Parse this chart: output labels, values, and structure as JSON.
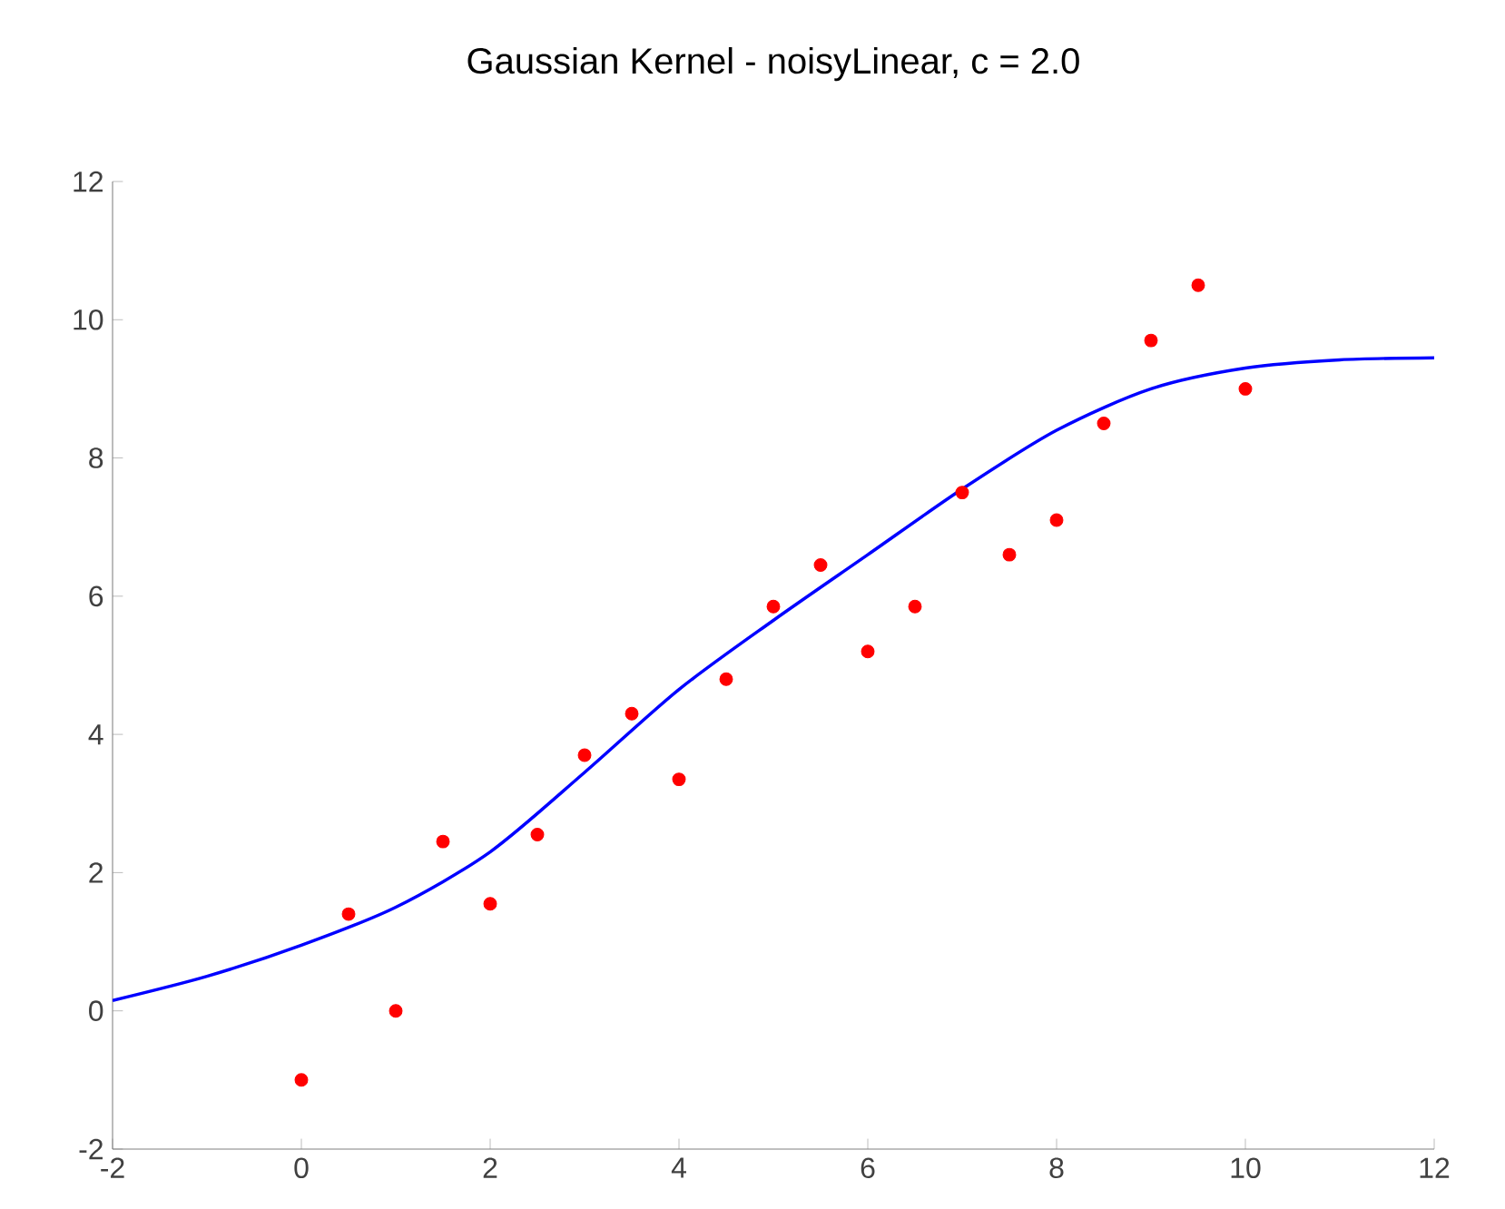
{
  "chart_data": {
    "type": "scatter",
    "title": "Gaussian Kernel - noisyLinear,  c = 2.0",
    "xlim": [
      -2,
      12
    ],
    "ylim": [
      -2,
      12
    ],
    "xticks": [
      -2,
      0,
      2,
      4,
      6,
      8,
      10,
      12
    ],
    "yticks": [
      -2,
      0,
      2,
      4,
      6,
      8,
      10,
      12
    ],
    "series": [
      {
        "color": "#ff0000",
        "marker": "circle",
        "x": [
          0,
          0.5,
          1,
          1.5,
          2,
          2.5,
          3,
          3.5,
          4,
          4.5,
          5,
          5.5,
          6,
          6.5,
          7,
          7.5,
          8,
          8.5,
          9,
          9.5,
          10
        ],
        "values": [
          -1.0,
          1.4,
          0.0,
          2.45,
          1.55,
          2.55,
          3.7,
          4.3,
          3.35,
          4.8,
          5.85,
          6.45,
          5.2,
          5.85,
          7.5,
          6.6,
          7.1,
          8.5,
          9.7,
          10.5,
          9.0
        ]
      },
      {
        "type": "line",
        "color": "#0000ff",
        "marker": "none",
        "line_style": "solid",
        "x": [
          -2,
          -1,
          0,
          1,
          2,
          3,
          4,
          5,
          6,
          7,
          8,
          9,
          10,
          11,
          12
        ],
        "values": [
          0.15,
          0.5,
          0.95,
          1.5,
          2.3,
          3.45,
          4.65,
          5.65,
          6.6,
          7.55,
          8.4,
          9.0,
          9.3,
          9.42,
          9.45
        ]
      }
    ]
  }
}
